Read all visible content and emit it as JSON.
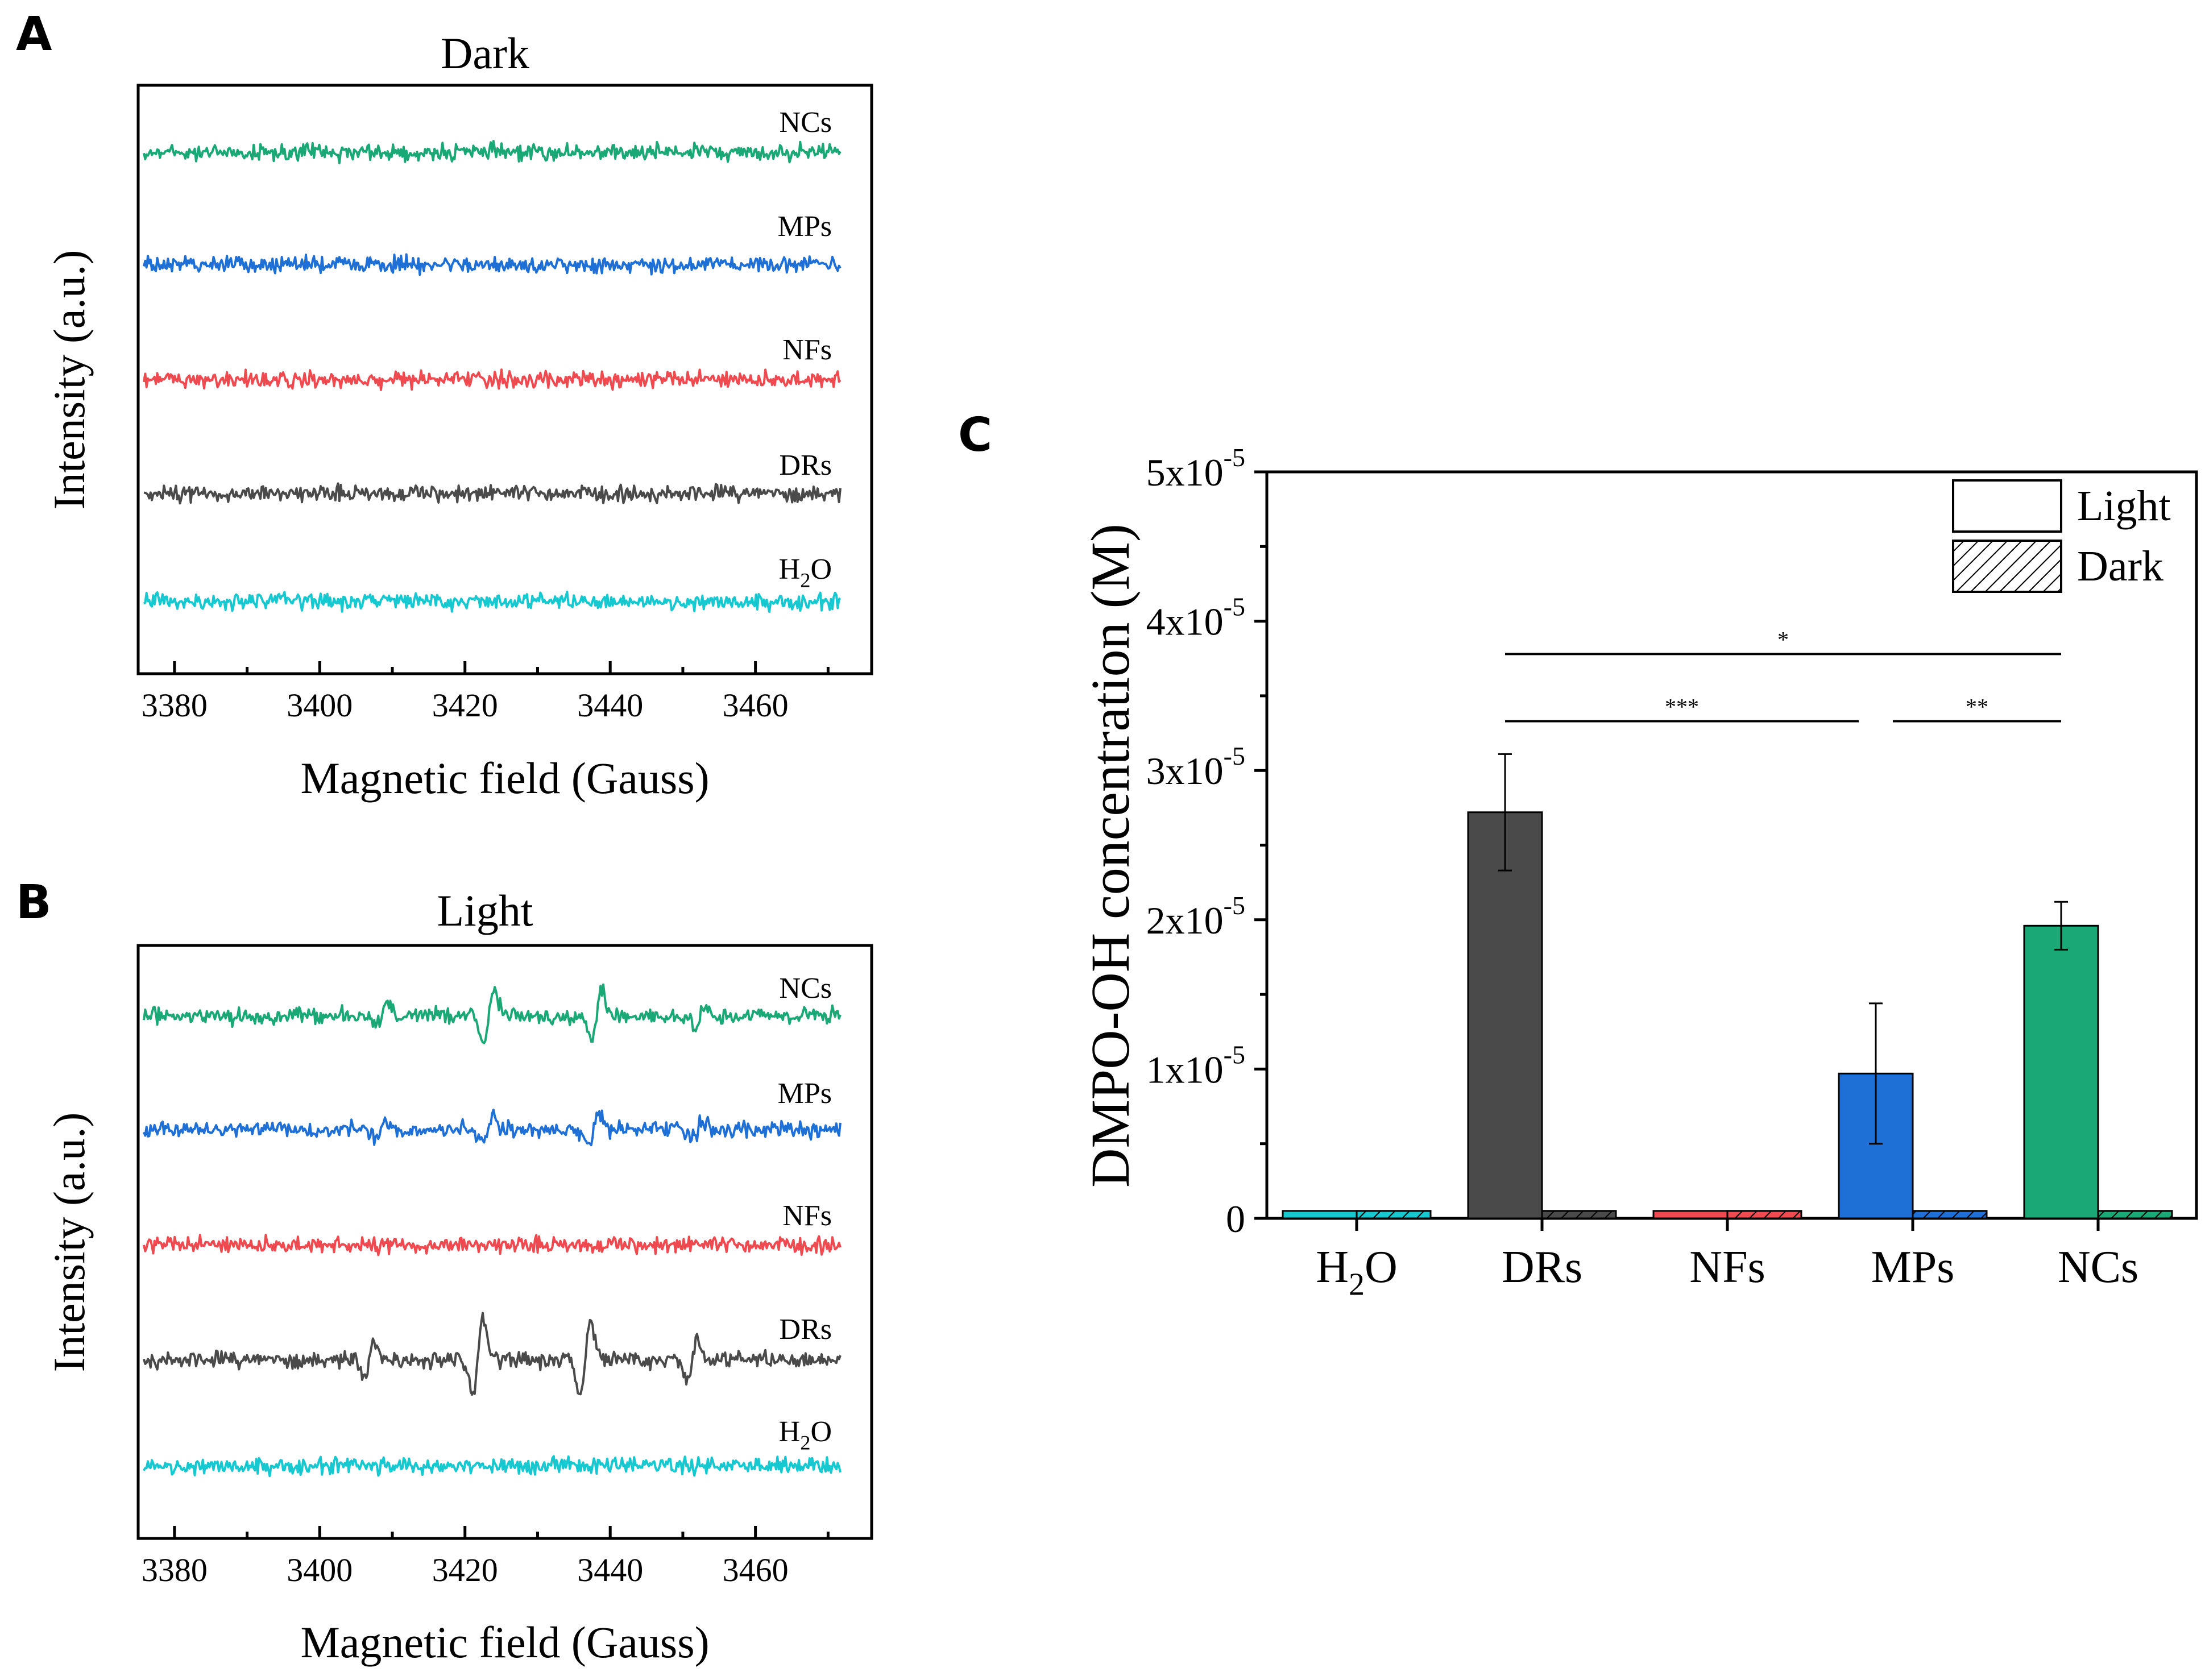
{
  "panels": {
    "A": "A",
    "B": "B",
    "C": "C"
  },
  "chart_data": [
    {
      "type": "line",
      "panel": "A",
      "title": "Dark",
      "xlabel": "Magnetic field (Gauss)",
      "ylabel": "Intensity (a.u.)",
      "xlim": [
        3375,
        3476
      ],
      "xticks": [
        3380,
        3400,
        3420,
        3440,
        3460
      ],
      "grid": false,
      "series": [
        {
          "name": "NCs",
          "label_main": "NCs",
          "label_sub": "",
          "label_tail": "",
          "color": "#1aa876",
          "signal": false,
          "peaks": []
        },
        {
          "name": "MPs",
          "label_main": "MPs",
          "label_sub": "",
          "label_tail": "",
          "color": "#1f70d6",
          "signal": false,
          "peaks": []
        },
        {
          "name": "NFs",
          "label_main": "NFs",
          "label_sub": "",
          "label_tail": "",
          "color": "#ee4a50",
          "signal": false,
          "peaks": []
        },
        {
          "name": "DRs",
          "label_main": "DRs",
          "label_sub": "",
          "label_tail": "",
          "color": "#4a4a4a",
          "signal": false,
          "peaks": []
        },
        {
          "name": "H2O",
          "label_main": "H",
          "label_sub": "2",
          "label_tail": "O",
          "color": "#16c8d0",
          "signal": false,
          "peaks": []
        }
      ]
    },
    {
      "type": "line",
      "panel": "B",
      "title": "Light",
      "xlabel": "Magnetic field (Gauss)",
      "ylabel": "Intensity (a.u.)",
      "xlim": [
        3375,
        3476
      ],
      "xticks": [
        3380,
        3400,
        3420,
        3440,
        3460
      ],
      "grid": false,
      "series": [
        {
          "name": "NCs",
          "label_main": "NCs",
          "label_sub": "",
          "label_tail": "",
          "color": "#1aa876",
          "signal": true,
          "peaks": [
            [
              3408.5,
              0.45
            ],
            [
              3423.3,
              1.0
            ],
            [
              3438.1,
              1.0
            ],
            [
              3452.4,
              0.45
            ]
          ]
        },
        {
          "name": "MPs",
          "label_main": "MPs",
          "label_sub": "",
          "label_tail": "",
          "color": "#1f70d6",
          "signal": true,
          "peaks": [
            [
              3408.2,
              0.32
            ],
            [
              3423.0,
              0.6
            ],
            [
              3437.8,
              0.6
            ],
            [
              3452.1,
              0.32
            ]
          ]
        },
        {
          "name": "NFs",
          "label_main": "NFs",
          "label_sub": "",
          "label_tail": "",
          "color": "#ee4a50",
          "signal": false,
          "peaks": []
        },
        {
          "name": "DRs",
          "label_main": "DRs",
          "label_sub": "",
          "label_tail": "",
          "color": "#4a4a4a",
          "signal": true,
          "peaks": [
            [
              3406.8,
              0.8
            ],
            [
              3421.8,
              1.5
            ],
            [
              3436.6,
              1.5
            ],
            [
              3451.3,
              0.8
            ]
          ]
        },
        {
          "name": "H2O",
          "label_main": "H",
          "label_sub": "2",
          "label_tail": "O",
          "color": "#16c8d0",
          "signal": false,
          "peaks": []
        }
      ]
    },
    {
      "type": "bar",
      "panel": "C",
      "ylabel": "DMPO-OH concentration (M)",
      "ylim": [
        0,
        5e-05
      ],
      "yticks": [
        {
          "value": 0,
          "base": "0",
          "exp": ""
        },
        {
          "value": 1e-05,
          "base": "1x10",
          "exp": "-5"
        },
        {
          "value": 2e-05,
          "base": "2x10",
          "exp": "-5"
        },
        {
          "value": 3e-05,
          "base": "3x10",
          "exp": "-5"
        },
        {
          "value": 4e-05,
          "base": "4x10",
          "exp": "-5"
        },
        {
          "value": 5e-05,
          "base": "5x10",
          "exp": "-5"
        }
      ],
      "categories": [
        {
          "name": "H2O",
          "main": "H",
          "sub": "2",
          "tail": "O"
        },
        {
          "name": "DRs",
          "main": "DRs",
          "sub": "",
          "tail": ""
        },
        {
          "name": "NFs",
          "main": "NFs",
          "sub": "",
          "tail": ""
        },
        {
          "name": "MPs",
          "main": "MPs",
          "sub": "",
          "tail": ""
        },
        {
          "name": "NCs",
          "main": "NCs",
          "sub": "",
          "tail": ""
        }
      ],
      "colors": [
        "#16c8d0",
        "#4a4a4a",
        "#ee4a50",
        "#1f70d6",
        "#1aa876"
      ],
      "series": [
        {
          "name": "Light",
          "values": [
            5e-07,
            2.72e-05,
            5e-07,
            9.7e-06,
            1.96e-05
          ],
          "errors": [
            0,
            3.9e-06,
            0,
            4.7e-06,
            1.6e-06
          ]
        },
        {
          "name": "Dark",
          "values": [
            5e-07,
            5e-07,
            5e-07,
            5e-07,
            5e-07
          ],
          "errors": [
            0,
            0,
            0,
            0,
            0
          ]
        }
      ],
      "legend": {
        "position": "top-right",
        "entries": [
          "Light",
          "Dark"
        ]
      },
      "significance": [
        {
          "from": "DRs",
          "to": "NCs",
          "y": 3.78e-05,
          "label": "*"
        },
        {
          "from": "DRs",
          "to": "MPs",
          "y": 3.33e-05,
          "label": "***"
        },
        {
          "from": "MPs",
          "to": "NCs",
          "y": 3.33e-05,
          "label": "**"
        }
      ]
    }
  ]
}
